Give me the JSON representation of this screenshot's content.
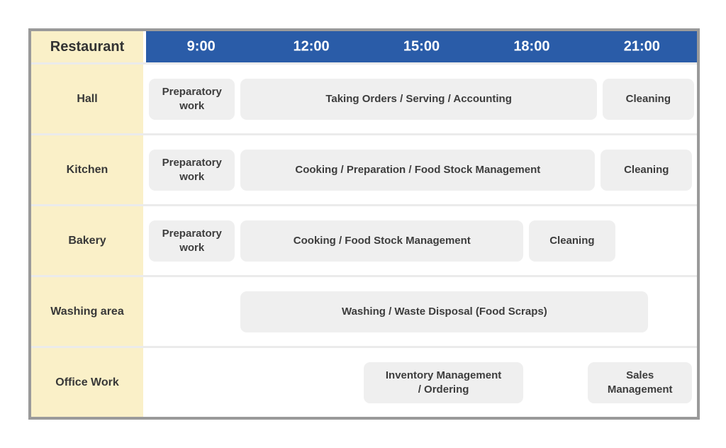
{
  "chart_data": {
    "type": "gantt",
    "title": "Restaurant",
    "time_axis": {
      "start_hour": 7.5,
      "end_hour": 22.5,
      "tick_hours": [
        9,
        12,
        15,
        18,
        21
      ],
      "tick_labels": [
        "9:00",
        "12:00",
        "15:00",
        "18:00",
        "21:00"
      ]
    },
    "rows": [
      {
        "label": "Hall",
        "tasks": [
          {
            "label": "Preparatory\nwork",
            "start_hour": 7.5,
            "end_hour": 10.0
          },
          {
            "label": "Taking Orders / Serving / Accounting",
            "start_hour": 10.0,
            "end_hour": 19.85
          },
          {
            "label": "Cleaning",
            "start_hour": 19.85,
            "end_hour": 22.5
          }
        ]
      },
      {
        "label": "Kitchen",
        "tasks": [
          {
            "label": "Preparatory\nwork",
            "start_hour": 7.5,
            "end_hour": 10.0
          },
          {
            "label": "Cooking / Preparation / Food Stock Management",
            "start_hour": 10.0,
            "end_hour": 19.8
          },
          {
            "label": "Cleaning",
            "start_hour": 19.8,
            "end_hour": 22.45
          }
        ]
      },
      {
        "label": "Bakery",
        "tasks": [
          {
            "label": "Preparatory\nwork",
            "start_hour": 7.5,
            "end_hour": 10.0
          },
          {
            "label": "Cooking / Food Stock Management",
            "start_hour": 10.0,
            "end_hour": 17.85
          },
          {
            "label": "Cleaning",
            "start_hour": 17.85,
            "end_hour": 20.35
          }
        ]
      },
      {
        "label": "Washing area",
        "tasks": [
          {
            "label": "Washing / Waste Disposal (Food Scraps)",
            "start_hour": 10.0,
            "end_hour": 21.25
          }
        ]
      },
      {
        "label": "Office Work",
        "tasks": [
          {
            "label": "Inventory Management\n/ Ordering",
            "start_hour": 13.35,
            "end_hour": 17.85
          },
          {
            "label": "Sales\nManagement",
            "start_hour": 19.45,
            "end_hour": 22.45
          }
        ]
      }
    ]
  },
  "colors": {
    "header_blue": "#2a5ca8",
    "label_cream": "#faf0c8",
    "task_gray": "#efefef",
    "task_text": "#3d3d3d",
    "label_text": "#383838",
    "corner_text": "#333333",
    "header_text": "#ffffff",
    "frame_border": "#9a9a9a",
    "grid_gap": "#ebebeb"
  }
}
